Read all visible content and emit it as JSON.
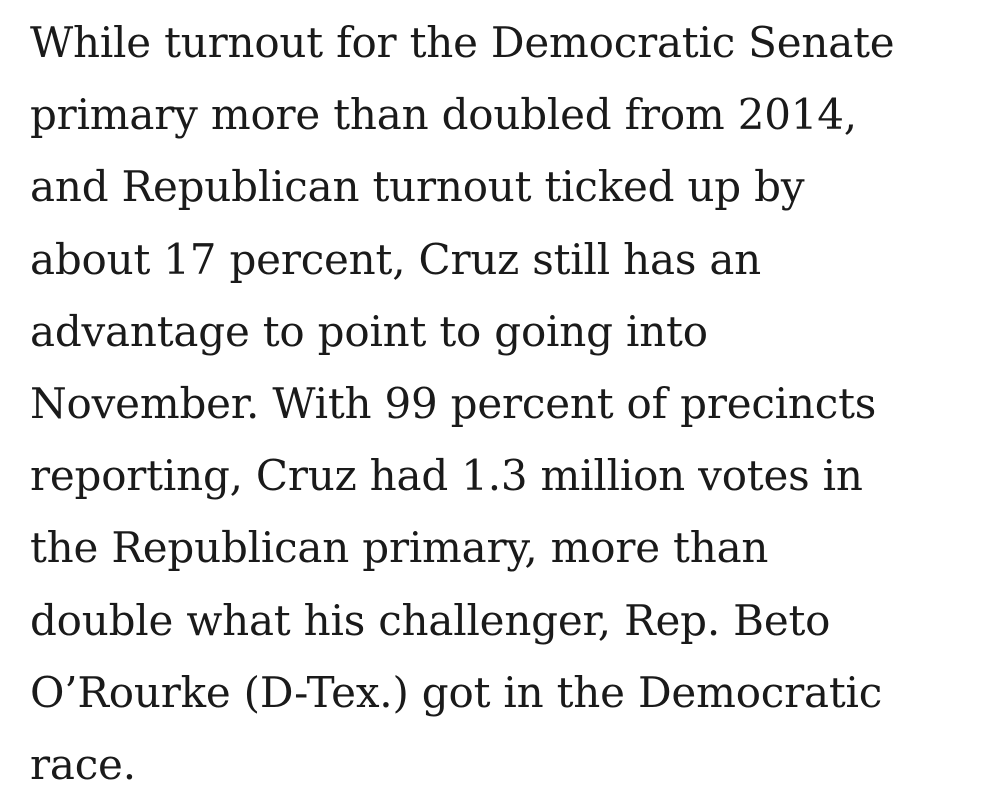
{
  "article": {
    "lines": [
      "While turnout for the Democratic Senate",
      "primary more than doubled from 2014,",
      "and Republican turnout ticked up by",
      "about 17 percent, Cruz still has an",
      "advantage to point to going into",
      "November. With 99 percent of precincts",
      "reporting, Cruz had 1.3 million votes in",
      "the Republican primary, more than",
      "double what his challenger, Rep. Beto",
      "O’Rourke (D-Tex.) got in the Democratic",
      "race."
    ]
  }
}
